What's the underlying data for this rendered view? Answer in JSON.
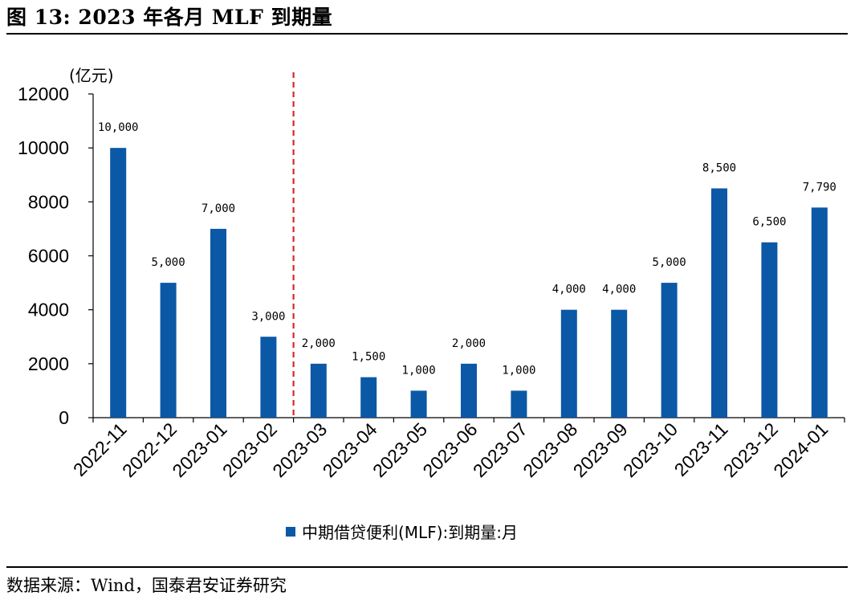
{
  "title": "图 13:  2023 年各月 MLF 到期量",
  "source": "数据来源：Wind，国泰君安证券研究",
  "chart_data": {
    "type": "bar",
    "unit_label": "(亿元)",
    "categories": [
      "2022-11",
      "2022-12",
      "2023-01",
      "2023-02",
      "2023-03",
      "2023-04",
      "2023-05",
      "2023-06",
      "2023-07",
      "2023-08",
      "2023-09",
      "2023-10",
      "2023-11",
      "2023-12",
      "2024-01"
    ],
    "series": [
      {
        "name": "中期借贷便利(MLF):到期量:月",
        "values": [
          10000,
          5000,
          7000,
          3000,
          2000,
          1500,
          1000,
          2000,
          1000,
          4000,
          4000,
          5000,
          8500,
          6500,
          7790
        ],
        "data_labels": [
          "10,000",
          "5,000",
          "7,000",
          "3,000",
          "2,000",
          "1,500",
          "1,000",
          "2,000",
          "1,000",
          "4,000",
          "4,000",
          "5,000",
          "8,500",
          "6,500",
          "7,790"
        ],
        "color": "#0b58a6"
      }
    ],
    "ylim": [
      0,
      12000
    ],
    "yticks": [
      0,
      2000,
      4000,
      6000,
      8000,
      10000,
      12000
    ],
    "reference_line": {
      "between": [
        "2023-02",
        "2023-03"
      ],
      "style": "dashed",
      "color": "#d62728"
    },
    "grid": false,
    "legend_position": "bottom"
  }
}
